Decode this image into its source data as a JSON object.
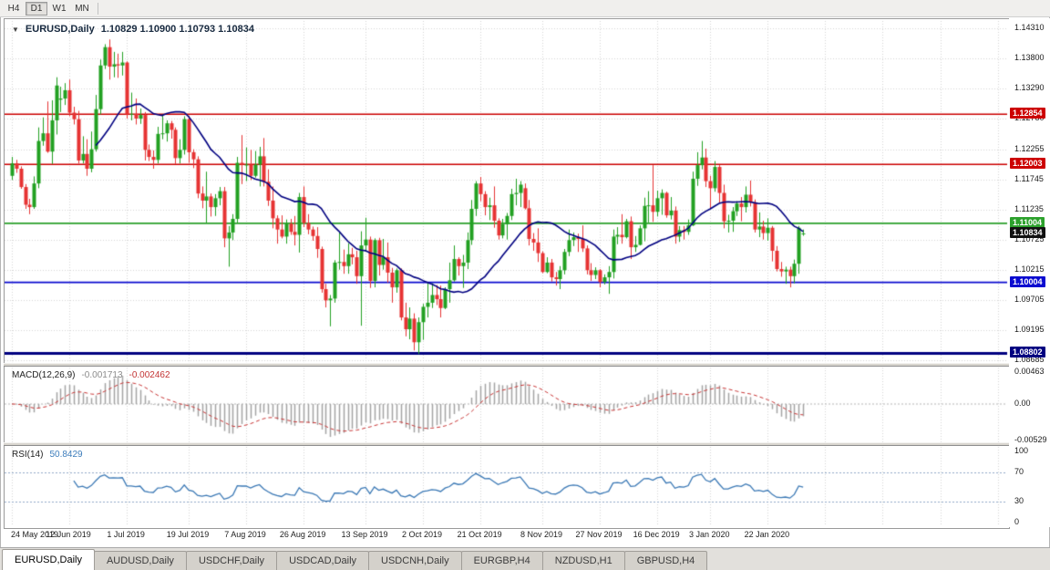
{
  "toolbar": {
    "buttons": [
      {
        "label": "H4",
        "active": false
      },
      {
        "label": "D1",
        "active": true
      },
      {
        "label": "W1",
        "active": false
      },
      {
        "label": "MN",
        "active": false
      }
    ]
  },
  "chart": {
    "title": {
      "menu_icon": "▼",
      "symbol": "EURUSD,Daily",
      "quote": "1.10829 1.10900 1.10793 1.10834"
    },
    "price_axis": {
      "ticks": [
        "1.14310",
        "1.13800",
        "1.13290",
        "1.12780",
        "1.12255",
        "1.11745",
        "1.11235",
        "1.10725",
        "1.10215",
        "1.09705",
        "1.09195",
        "1.08685"
      ]
    },
    "hlines": [
      {
        "price": 1.12854,
        "label": "1.12854",
        "color": "#cc0000",
        "width": 1.6
      },
      {
        "price": 1.12003,
        "label": "1.12003",
        "color": "#cc0000",
        "width": 1.6
      },
      {
        "price": 1.11004,
        "label": "1.11004",
        "color": "#2ca12c",
        "width": 1.8
      },
      {
        "price": 1.10004,
        "label": "1.10004",
        "color": "#0b0bd0",
        "width": 1.6
      },
      {
        "price": 1.08802,
        "label": "1.08802",
        "color": "#000080",
        "width": 3
      }
    ],
    "current_price": {
      "value": 1.10834,
      "label": "1.10834",
      "color": "#111111"
    }
  },
  "indicators": {
    "macd": {
      "name": "MACD(12,26,9)",
      "value_main": "-0.001713",
      "value_signal": "-0.002462",
      "axis_labels": [
        "0.00463",
        "0.00",
        "-0.00529"
      ],
      "max": 0.00463,
      "min": -0.00529,
      "fast": 12,
      "slow": 26,
      "signal": 9,
      "histogram_color": "#a4a4a4",
      "signal_color": "#c93535",
      "zero_line_color": "#b4b4b4"
    },
    "rsi": {
      "name": "RSI(14)",
      "value": "50.8429",
      "axis_labels": [
        "100",
        "70",
        "30",
        "0"
      ],
      "levels": [
        70,
        30
      ],
      "period": 14,
      "line_color": "#3a78b5",
      "level_color": "#8fa8c8"
    }
  },
  "tabs": {
    "items": [
      {
        "label": "EURUSD,Daily",
        "active": true
      },
      {
        "label": "AUDUSD,Daily",
        "active": false
      },
      {
        "label": "USDCHF,Daily",
        "active": false
      },
      {
        "label": "USDCAD,Daily",
        "active": false
      },
      {
        "label": "USDCNH,Daily",
        "active": false
      },
      {
        "label": "EURGBP,H4",
        "active": false
      },
      {
        "label": "NZDUSD,H1",
        "active": false
      },
      {
        "label": "GBPUSD,H4",
        "active": false
      }
    ]
  },
  "colors": {
    "up": "#22a122",
    "up_border": "#157d15",
    "down": "#e63333",
    "down_border": "#b32020",
    "grid": "#d6d6d6",
    "ma": "#000080"
  },
  "chart_data": {
    "type": "candlestick",
    "symbol": "EURUSD",
    "timeframe": "Daily",
    "title": "EURUSD,Daily",
    "ylim": [
      1.08685,
      1.1431
    ],
    "overlay": {
      "type": "sma",
      "period": 20,
      "color": "#000080"
    },
    "x_tick_labels": [
      "24 May 2019",
      "12 Jun 2019",
      "1 Jul 2019",
      "19 Jul 2019",
      "7 Aug 2019",
      "26 Aug 2019",
      "13 Sep 2019",
      "2 Oct 2019",
      "21 Oct 2019",
      "8 Nov 2019",
      "27 Nov 2019",
      "16 Dec 2019",
      "3 Jan 2020",
      "22 Jan 2020"
    ],
    "x_tick_indices": [
      0,
      13,
      26,
      40,
      53,
      66,
      80,
      93,
      106,
      120,
      133,
      146,
      158,
      171
    ],
    "ohlc": [
      [
        1.1181,
        1.1213,
        1.1174,
        1.1202
      ],
      [
        1.1202,
        1.1208,
        1.1186,
        1.1193
      ],
      [
        1.1193,
        1.1197,
        1.1159,
        1.1162
      ],
      [
        1.1162,
        1.1167,
        1.1125,
        1.1132
      ],
      [
        1.1132,
        1.1142,
        1.1116,
        1.1128
      ],
      [
        1.1128,
        1.118,
        1.1125,
        1.1168
      ],
      [
        1.1168,
        1.1263,
        1.116,
        1.124
      ],
      [
        1.124,
        1.128,
        1.1232,
        1.1253
      ],
      [
        1.1253,
        1.1307,
        1.122,
        1.1222
      ],
      [
        1.1222,
        1.1309,
        1.1201,
        1.1275
      ],
      [
        1.1275,
        1.1348,
        1.1251,
        1.1334
      ],
      [
        1.131,
        1.1332,
        1.1289,
        1.1312
      ],
      [
        1.1312,
        1.1338,
        1.1301,
        1.1326
      ],
      [
        1.1326,
        1.1344,
        1.1282,
        1.1288
      ],
      [
        1.1288,
        1.1298,
        1.1268,
        1.1277
      ],
      [
        1.1277,
        1.1291,
        1.1202,
        1.1207
      ],
      [
        1.1207,
        1.1248,
        1.1202,
        1.1218
      ],
      [
        1.1218,
        1.1243,
        1.1181,
        1.1193
      ],
      [
        1.1193,
        1.1256,
        1.1187,
        1.1226
      ],
      [
        1.1226,
        1.1318,
        1.1222,
        1.1294
      ],
      [
        1.1294,
        1.1378,
        1.1285,
        1.1368
      ],
      [
        1.1368,
        1.1404,
        1.1362,
        1.1399
      ],
      [
        1.1399,
        1.1412,
        1.1344,
        1.1366
      ],
      [
        1.1366,
        1.1391,
        1.1348,
        1.137
      ],
      [
        1.137,
        1.1388,
        1.1347,
        1.1368
      ],
      [
        1.1368,
        1.1391,
        1.1351,
        1.1373
      ],
      [
        1.1373,
        1.1375,
        1.1278,
        1.1285
      ],
      [
        1.1285,
        1.1322,
        1.1275,
        1.1286
      ],
      [
        1.1286,
        1.1312,
        1.1268,
        1.1278
      ],
      [
        1.1278,
        1.1295,
        1.1269,
        1.1284
      ],
      [
        1.1284,
        1.1289,
        1.1207,
        1.1225
      ],
      [
        1.1225,
        1.1234,
        1.1206,
        1.1213
      ],
      [
        1.1213,
        1.1224,
        1.1193,
        1.1208
      ],
      [
        1.1208,
        1.1264,
        1.1202,
        1.1252
      ],
      [
        1.1252,
        1.1285,
        1.1243,
        1.1253
      ],
      [
        1.1253,
        1.1275,
        1.1239,
        1.127
      ],
      [
        1.127,
        1.1274,
        1.1244,
        1.1259
      ],
      [
        1.1259,
        1.1263,
        1.1201,
        1.1211
      ],
      [
        1.1211,
        1.1243,
        1.1202,
        1.1225
      ],
      [
        1.1225,
        1.1282,
        1.1217,
        1.1277
      ],
      [
        1.1277,
        1.1283,
        1.1203,
        1.1221
      ],
      [
        1.1221,
        1.1226,
        1.1194,
        1.1209
      ],
      [
        1.1209,
        1.1214,
        1.1143,
        1.1151
      ],
      [
        1.1151,
        1.1163,
        1.1126,
        1.1139
      ],
      [
        1.1139,
        1.1188,
        1.1101,
        1.1146
      ],
      [
        1.1146,
        1.1151,
        1.1112,
        1.1128
      ],
      [
        1.1128,
        1.115,
        1.1113,
        1.1143
      ],
      [
        1.1143,
        1.1162,
        1.1131,
        1.1155
      ],
      [
        1.1155,
        1.1162,
        1.106,
        1.1075
      ],
      [
        1.1075,
        1.1096,
        1.1027,
        1.1085
      ],
      [
        1.1085,
        1.1116,
        1.1072,
        1.1108
      ],
      [
        1.1108,
        1.1213,
        1.1101,
        1.1203
      ],
      [
        1.1203,
        1.125,
        1.1167,
        1.12
      ],
      [
        1.12,
        1.1229,
        1.1172,
        1.12
      ],
      [
        1.12,
        1.1225,
        1.1174,
        1.1181
      ],
      [
        1.1181,
        1.1223,
        1.1178,
        1.12
      ],
      [
        1.12,
        1.123,
        1.1163,
        1.1214
      ],
      [
        1.1214,
        1.1245,
        1.1163,
        1.1171
      ],
      [
        1.1171,
        1.1192,
        1.113,
        1.1139
      ],
      [
        1.1139,
        1.1163,
        1.1092,
        1.1109
      ],
      [
        1.1109,
        1.1114,
        1.1066,
        1.109
      ],
      [
        1.109,
        1.1114,
        1.1075,
        1.1078
      ],
      [
        1.1078,
        1.1107,
        1.1066,
        1.11
      ],
      [
        1.11,
        1.1108,
        1.1081,
        1.1086
      ],
      [
        1.1086,
        1.1113,
        1.1063,
        1.1081
      ],
      [
        1.1081,
        1.1152,
        1.1051,
        1.1145
      ],
      [
        1.1145,
        1.1163,
        1.1094,
        1.1101
      ],
      [
        1.1101,
        1.1116,
        1.1082,
        1.109
      ],
      [
        1.109,
        1.1095,
        1.1071,
        1.1079
      ],
      [
        1.1079,
        1.1094,
        1.1042,
        1.1057
      ],
      [
        1.1057,
        1.1061,
        1.0983,
        1.0989
      ],
      [
        1.0989,
        1.0998,
        1.0958,
        1.097
      ],
      [
        1.097,
        1.0979,
        1.0926,
        1.0973
      ],
      [
        1.0973,
        1.1038,
        1.0966,
        1.1034
      ],
      [
        1.1034,
        1.1085,
        1.1022,
        1.1035
      ],
      [
        1.1035,
        1.1056,
        1.1015,
        1.1028
      ],
      [
        1.1028,
        1.1067,
        1.1015,
        1.1048
      ],
      [
        1.1048,
        1.1059,
        1.1031,
        1.1043
      ],
      [
        1.1043,
        1.1054,
        1.0998,
        1.1011
      ],
      [
        1.1011,
        1.1087,
        1.0927,
        1.1063
      ],
      [
        1.1063,
        1.111,
        1.1052,
        1.1073
      ],
      [
        1.1073,
        1.1078,
        1.0991,
        1.1003
      ],
      [
        1.1003,
        1.1075,
        1.0992,
        1.1072
      ],
      [
        1.1072,
        1.1076,
        1.1012,
        1.103
      ],
      [
        1.103,
        1.1074,
        1.1022,
        1.1043
      ],
      [
        1.1043,
        1.1068,
        1.1,
        1.1017
      ],
      [
        1.1017,
        1.1025,
        1.0966,
        1.0992
      ],
      [
        1.0992,
        1.1024,
        1.0983,
        1.1021
      ],
      [
        1.1021,
        1.1024,
        1.0936,
        1.0941
      ],
      [
        1.0941,
        1.0966,
        1.0909,
        1.0921
      ],
      [
        1.0921,
        1.0958,
        1.0904,
        1.0939
      ],
      [
        1.0939,
        1.0948,
        1.0885,
        1.0899
      ],
      [
        1.0899,
        1.0941,
        1.0879,
        1.0933
      ],
      [
        1.0933,
        1.0964,
        1.0903,
        1.0959
      ],
      [
        1.0959,
        1.0999,
        1.0941,
        1.0966
      ],
      [
        1.0966,
        1.0999,
        1.0957,
        1.0979
      ],
      [
        1.0979,
        1.0996,
        1.0962,
        1.0972
      ],
      [
        1.0972,
        1.0995,
        1.0941,
        1.0957
      ],
      [
        1.0957,
        1.0992,
        1.0955,
        1.0989
      ],
      [
        1.0989,
        1.1034,
        1.0966,
        1.1004
      ],
      [
        1.1004,
        1.1063,
        1.1002,
        1.104
      ],
      [
        1.104,
        1.1043,
        1.1012,
        1.1028
      ],
      [
        1.1028,
        1.1047,
        1.0991,
        1.1034
      ],
      [
        1.1034,
        1.1085,
        1.1023,
        1.1072
      ],
      [
        1.1072,
        1.114,
        1.1064,
        1.1125
      ],
      [
        1.1125,
        1.1172,
        1.1113,
        1.1168
      ],
      [
        1.1168,
        1.1179,
        1.1138,
        1.115
      ],
      [
        1.115,
        1.1155,
        1.1114,
        1.1128
      ],
      [
        1.1128,
        1.1144,
        1.1106,
        1.1131
      ],
      [
        1.1131,
        1.1163,
        1.1093,
        1.1105
      ],
      [
        1.1105,
        1.1109,
        1.1073,
        1.108
      ],
      [
        1.108,
        1.1108,
        1.1075,
        1.1099
      ],
      [
        1.1099,
        1.1118,
        1.1073,
        1.1113
      ],
      [
        1.1113,
        1.1159,
        1.1106,
        1.115
      ],
      [
        1.115,
        1.1176,
        1.1131,
        1.1152
      ],
      [
        1.1152,
        1.1172,
        1.1128,
        1.1166
      ],
      [
        1.116,
        1.1168,
        1.1124,
        1.1126
      ],
      [
        1.1126,
        1.114,
        1.1063,
        1.1074
      ],
      [
        1.1074,
        1.1084,
        1.1054,
        1.1068
      ],
      [
        1.1068,
        1.1092,
        1.1035,
        1.105
      ],
      [
        1.105,
        1.1053,
        1.1016,
        1.1018
      ],
      [
        1.1018,
        1.1043,
        1.1016,
        1.1034
      ],
      [
        1.1034,
        1.104,
        1.1002,
        1.1009
      ],
      [
        1.1009,
        1.1018,
        1.0995,
        1.1006
      ],
      [
        1.1006,
        1.1028,
        1.0989,
        1.1021
      ],
      [
        1.1021,
        1.1057,
        1.1014,
        1.1052
      ],
      [
        1.1052,
        1.109,
        1.1045,
        1.1072
      ],
      [
        1.1072,
        1.1085,
        1.1062,
        1.1077
      ],
      [
        1.1077,
        1.1083,
        1.1052,
        1.1074
      ],
      [
        1.1074,
        1.1097,
        1.1052,
        1.1058
      ],
      [
        1.1058,
        1.1063,
        1.1014,
        1.1021
      ],
      [
        1.1021,
        1.1033,
        1.1003,
        1.1013
      ],
      [
        1.1013,
        1.1026,
        1.1006,
        1.1021
      ],
      [
        1.1021,
        1.1023,
        1.0992,
        1.1001
      ],
      [
        1.1001,
        1.1014,
        1.0997,
        1.1009
      ],
      [
        1.1009,
        1.1028,
        1.0981,
        1.1018
      ],
      [
        1.1018,
        1.109,
        1.1007,
        1.1078
      ],
      [
        1.1078,
        1.1094,
        1.1065,
        1.1081
      ],
      [
        1.1081,
        1.1116,
        1.1066,
        1.1077
      ],
      [
        1.1077,
        1.1108,
        1.1075,
        1.1104
      ],
      [
        1.1104,
        1.1112,
        1.104,
        1.106
      ],
      [
        1.106,
        1.1079,
        1.1052,
        1.1064
      ],
      [
        1.1064,
        1.1097,
        1.1063,
        1.1092
      ],
      [
        1.1092,
        1.1144,
        1.107,
        1.113
      ],
      [
        1.113,
        1.1155,
        1.1102,
        1.1131
      ],
      [
        1.1131,
        1.1199,
        1.1103,
        1.112
      ],
      [
        1.112,
        1.1156,
        1.1112,
        1.1143
      ],
      [
        1.1143,
        1.1158,
        1.1115,
        1.1152
      ],
      [
        1.1152,
        1.1154,
        1.111,
        1.1114
      ],
      [
        1.1114,
        1.1145,
        1.1107,
        1.1122
      ],
      [
        1.1122,
        1.1129,
        1.1066,
        1.1078
      ],
      [
        1.1078,
        1.1096,
        1.1069,
        1.1089
      ],
      [
        1.1089,
        1.1096,
        1.1073,
        1.1086
      ],
      [
        1.1086,
        1.1107,
        1.1081,
        1.1097
      ],
      [
        1.1097,
        1.1188,
        1.1096,
        1.1176
      ],
      [
        1.1176,
        1.1221,
        1.1164,
        1.1199
      ],
      [
        1.1199,
        1.124,
        1.1192,
        1.1212
      ],
      [
        1.1212,
        1.1227,
        1.1162,
        1.1172
      ],
      [
        1.1172,
        1.1181,
        1.1125,
        1.116
      ],
      [
        1.116,
        1.1206,
        1.1154,
        1.1196
      ],
      [
        1.1196,
        1.1199,
        1.1135,
        1.1152
      ],
      [
        1.1152,
        1.1166,
        1.1092,
        1.1104
      ],
      [
        1.1104,
        1.1115,
        1.1085,
        1.1105
      ],
      [
        1.1105,
        1.1128,
        1.1086,
        1.1121
      ],
      [
        1.1121,
        1.1138,
        1.1113,
        1.1134
      ],
      [
        1.1134,
        1.1145,
        1.1104,
        1.1128
      ],
      [
        1.1128,
        1.1163,
        1.1119,
        1.1149
      ],
      [
        1.1149,
        1.1173,
        1.1129,
        1.1136
      ],
      [
        1.1136,
        1.1141,
        1.1085,
        1.109
      ],
      [
        1.109,
        1.1119,
        1.1077,
        1.1095
      ],
      [
        1.1095,
        1.1105,
        1.1073,
        1.1084
      ],
      [
        1.1084,
        1.1109,
        1.1071,
        1.1093
      ],
      [
        1.1093,
        1.1096,
        1.1036,
        1.1054
      ],
      [
        1.1054,
        1.1062,
        1.1019,
        1.1023
      ],
      [
        1.1023,
        1.1035,
        1.101,
        1.1019
      ],
      [
        1.1019,
        1.1027,
        1.0998,
        1.1022
      ],
      [
        1.1022,
        1.1027,
        1.0992,
        1.1011
      ],
      [
        1.1011,
        1.1039,
        1.0999,
        1.1032
      ],
      [
        1.1032,
        1.1096,
        1.1015,
        1.1093
      ],
      [
        1.10829,
        1.109,
        1.10793,
        1.10834
      ]
    ]
  }
}
